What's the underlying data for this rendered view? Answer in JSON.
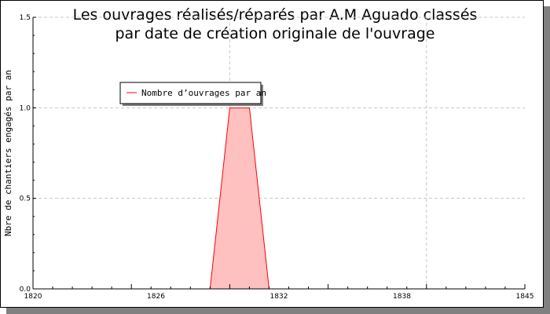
{
  "chart_data": {
    "type": "area",
    "title": [
      "Les ouvrages réalisés/réparés par A.M Aguado classés",
      "par date de création originale de l'ouvrage"
    ],
    "xlabel": "",
    "ylabel": "Nbre de chantiers engagés par an",
    "xlim": [
      1820,
      1845
    ],
    "ylim": [
      0,
      1.5
    ],
    "x_tick_labels": [
      "1820",
      "1826",
      "1832",
      "1838",
      "1845"
    ],
    "y_tick_labels": [
      "0.0",
      "0.5",
      "1.0",
      "1.5"
    ],
    "grid": true,
    "legend_position": "top-left",
    "series": [
      {
        "name": "Nombre d’ouvrages par an",
        "color": "#ff0000",
        "fill": "#ffc0c0",
        "x": [
          1829,
          1830,
          1831,
          1832
        ],
        "y": [
          0,
          1,
          1,
          0
        ]
      }
    ]
  }
}
